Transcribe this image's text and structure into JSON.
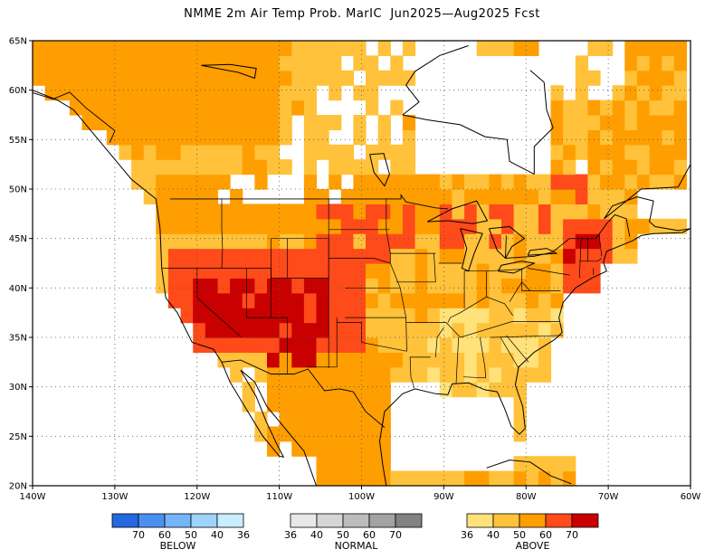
{
  "title": "NMME 2m Air Temp Prob. MarIC  Jun2025—Aug2025 Fcst",
  "map": {
    "lon_range": [
      -140,
      -60
    ],
    "lat_range": [
      20,
      65
    ],
    "lat_ticks": [
      "20N",
      "25N",
      "30N",
      "35N",
      "40N",
      "45N",
      "50N",
      "55N",
      "60N",
      "65N"
    ],
    "lon_ticks": [
      "140W",
      "130W",
      "120W",
      "110W",
      "100W",
      "90W",
      "80W",
      "70W",
      "60W"
    ],
    "gridlines": "dotted",
    "colors": {
      "above_36_40": "#ffe27a",
      "above_40_50": "#ffc23a",
      "above_50_60": "#ff9e00",
      "above_60_70": "#ff4a1a",
      "above_70": "#c80000",
      "no_signal": "#ffffff",
      "land_outline": "#000000"
    },
    "regions": [
      {
        "name": "desert-southwest",
        "category": "above_70",
        "lon": [
          -121,
          -103
        ],
        "lat": [
          34,
          41.5
        ]
      },
      {
        "name": "northeast-us",
        "category": "above_60_70",
        "lon": [
          -76,
          -70
        ],
        "lat": [
          40,
          46
        ]
      },
      {
        "name": "great-lakes",
        "category": "above_60_70",
        "lon": [
          -92,
          -82
        ],
        "lat": [
          44,
          49
        ]
      },
      {
        "name": "northern-plains",
        "category": "above_60_70",
        "lon": [
          -104,
          -95
        ],
        "lat": [
          44,
          49
        ]
      },
      {
        "name": "southeast-us",
        "category": "above_40_50",
        "lon": [
          -92,
          -76
        ],
        "lat": [
          30,
          37
        ]
      },
      {
        "name": "canada-east",
        "category": "above_40_50",
        "lon": [
          -85,
          -60
        ],
        "lat": [
          48,
          60
        ]
      },
      {
        "name": "mexico",
        "category": "above_50_60",
        "lon": [
          -112,
          -96
        ],
        "lat": [
          20,
          32
        ]
      }
    ]
  },
  "legend": {
    "below": {
      "label": "BELOW",
      "values": [
        "70",
        "60",
        "50",
        "40",
        "36"
      ],
      "colors": [
        "#2468e0",
        "#4a90f0",
        "#74b4f8",
        "#9ed4fc",
        "#c6eefe"
      ]
    },
    "normal": {
      "label": "NORMAL",
      "values": [
        "36",
        "40",
        "50",
        "60",
        "70"
      ],
      "colors": [
        "#e8e8e8",
        "#d6d6d6",
        "#bcbcbc",
        "#a2a2a2",
        "#828282"
      ]
    },
    "above": {
      "label": "ABOVE",
      "values": [
        "36",
        "40",
        "50",
        "60",
        "70"
      ],
      "colors": [
        "#ffe27a",
        "#ffc23a",
        "#ff9e00",
        "#ff4a1a",
        "#c80000"
      ]
    }
  }
}
